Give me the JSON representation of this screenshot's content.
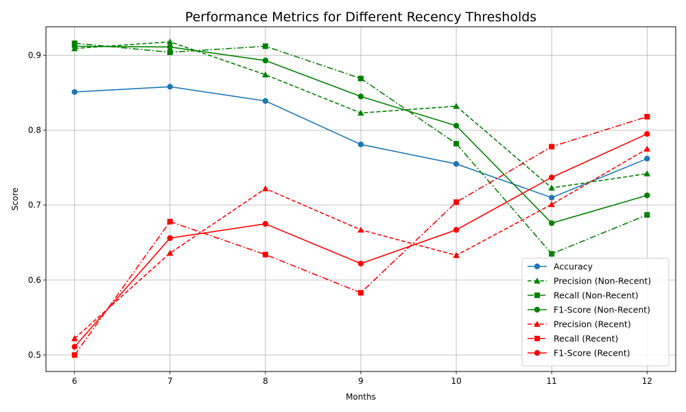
{
  "chart_data": {
    "type": "line",
    "title": "Performance Metrics for Different Recency Thresholds",
    "xlabel": "Months",
    "ylabel": "Score",
    "x": [
      6,
      7,
      8,
      9,
      10,
      11,
      12
    ],
    "xlim": [
      5.7,
      12.3
    ],
    "ylim": [
      0.478,
      0.938
    ],
    "xticks": [
      "6",
      "7",
      "8",
      "9",
      "10",
      "11",
      "12"
    ],
    "yticks": [
      "0.5",
      "0.6",
      "0.7",
      "0.8",
      "0.9"
    ],
    "ytick_values": [
      0.5,
      0.6,
      0.7,
      0.8,
      0.9
    ],
    "grid": true,
    "legend_position": "lower-right",
    "series": [
      {
        "name": "Accuracy",
        "color": "#1f77b4",
        "linestyle": "solid",
        "marker": "circle",
        "values": [
          0.851,
          0.858,
          0.839,
          0.781,
          0.755,
          0.71,
          0.762
        ]
      },
      {
        "name": "Precision (Non-Recent)",
        "color": "#008000",
        "linestyle": "dashed",
        "marker": "triangle",
        "values": [
          0.909,
          0.918,
          0.874,
          0.823,
          0.832,
          0.723,
          0.742
        ]
      },
      {
        "name": "Recall (Non-Recent)",
        "color": "#008000",
        "linestyle": "dashdot",
        "marker": "square",
        "values": [
          0.916,
          0.904,
          0.912,
          0.869,
          0.782,
          0.635,
          0.687
        ]
      },
      {
        "name": "F1-Score (Non-Recent)",
        "color": "#008000",
        "linestyle": "solid",
        "marker": "circle",
        "values": [
          0.912,
          0.911,
          0.893,
          0.845,
          0.806,
          0.676,
          0.713
        ]
      },
      {
        "name": "Precision (Recent)",
        "color": "#ff0000",
        "linestyle": "dashed",
        "marker": "triangle",
        "values": [
          0.522,
          0.636,
          0.722,
          0.667,
          0.633,
          0.701,
          0.775
        ]
      },
      {
        "name": "Recall (Recent)",
        "color": "#ff0000",
        "linestyle": "dashdot",
        "marker": "square",
        "values": [
          0.5,
          0.678,
          0.634,
          0.583,
          0.704,
          0.778,
          0.818
        ]
      },
      {
        "name": "F1-Score (Recent)",
        "color": "#ff0000",
        "linestyle": "solid",
        "marker": "circle",
        "values": [
          0.511,
          0.656,
          0.675,
          0.622,
          0.667,
          0.737,
          0.795
        ]
      }
    ]
  }
}
